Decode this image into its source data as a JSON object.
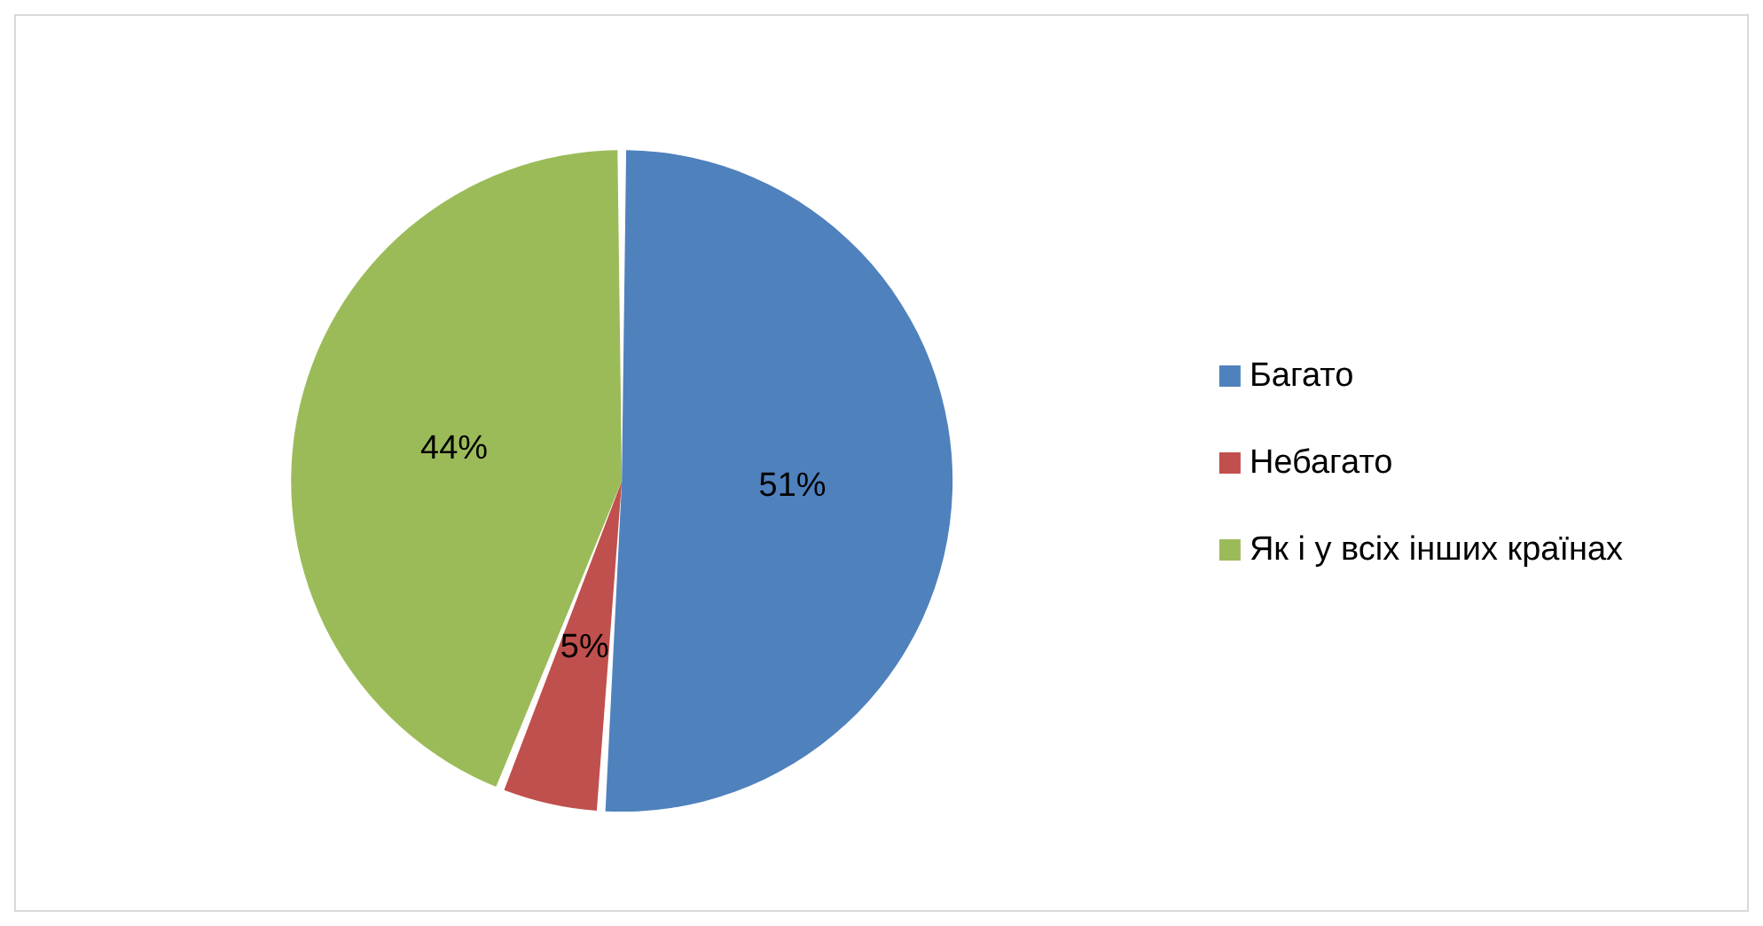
{
  "chart_data": {
    "type": "pie",
    "categories": [
      "Багато",
      "Небагато",
      "Як і у всіх інших країнах"
    ],
    "values": [
      51,
      5,
      44
    ],
    "colors": [
      "#4f81bd",
      "#c0504d",
      "#9bbb59"
    ],
    "value_labels": [
      "51%",
      "5%",
      "44%"
    ],
    "legend": "right"
  }
}
